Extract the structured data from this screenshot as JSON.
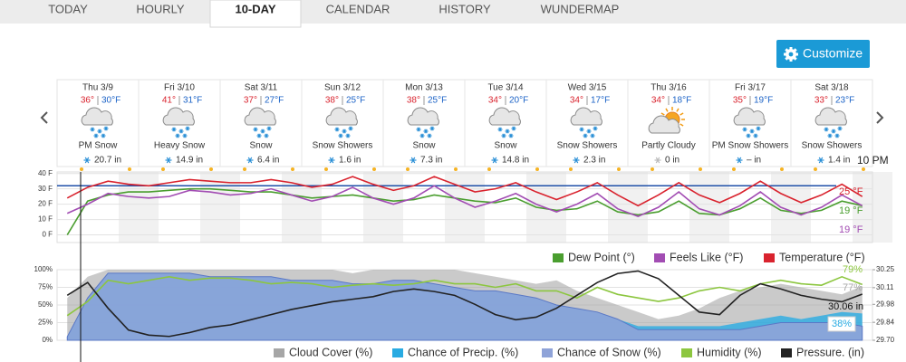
{
  "tabs": [
    "TODAY",
    "HOURLY",
    "10-DAY",
    "CALENDAR",
    "HISTORY",
    "WUNDERMAP"
  ],
  "active_tab": 2,
  "customize_button": "Customize",
  "days": [
    {
      "date": "Thu 3/9",
      "high": "36°",
      "low": "30°F",
      "condition": "PM Snow",
      "precip": "20.7 in"
    },
    {
      "date": "Fri 3/10",
      "high": "41°",
      "low": "31°F",
      "condition": "Heavy Snow",
      "precip": "14.9 in"
    },
    {
      "date": "Sat 3/11",
      "high": "37°",
      "low": "27°F",
      "condition": "Snow",
      "precip": "6.4 in"
    },
    {
      "date": "Sun 3/12",
      "high": "38°",
      "low": "25°F",
      "condition": "Snow Showers",
      "precip": "1.6 in"
    },
    {
      "date": "Mon 3/13",
      "high": "38°",
      "low": "25°F",
      "condition": "Snow",
      "precip": "7.3 in"
    },
    {
      "date": "Tue 3/14",
      "high": "34°",
      "low": "20°F",
      "condition": "Snow",
      "precip": "14.8 in"
    },
    {
      "date": "Wed 3/15",
      "high": "34°",
      "low": "17°F",
      "condition": "Snow Showers",
      "precip": "2.3 in"
    },
    {
      "date": "Thu 3/16",
      "high": "34°",
      "low": "18°F",
      "condition": "Partly Cloudy",
      "precip": "0 in"
    },
    {
      "date": "Fri 3/17",
      "high": "35°",
      "low": "19°F",
      "condition": "PM Snow Showers",
      "precip": "– in"
    },
    {
      "date": "Sat 3/18",
      "high": "33°",
      "low": "23°F",
      "condition": "Snow Showers",
      "precip": "1.4 in"
    }
  ],
  "time_label": "10 PM",
  "chart_data": [
    {
      "type": "line",
      "ylim": [
        -5,
        41
      ],
      "yticks": [
        {
          "value": 40,
          "label": "40 F"
        },
        {
          "value": 30,
          "label": "30 F"
        },
        {
          "value": 20,
          "label": "20 F"
        },
        {
          "value": 10,
          "label": "10 F"
        },
        {
          "value": 0,
          "label": "0 F"
        }
      ],
      "reference_line": 32,
      "series": [
        {
          "name": "Dew Point (°)",
          "color": "#4a9e2f",
          "end_label": "19 °F",
          "values": [
            0,
            22,
            26,
            28,
            28,
            29,
            30,
            30,
            29,
            28,
            28,
            26,
            24,
            25,
            26,
            24,
            22,
            23,
            26,
            24,
            22,
            21,
            24,
            18,
            16,
            17,
            22,
            15,
            13,
            15,
            22,
            14,
            13,
            17,
            24,
            16,
            14,
            16,
            22,
            19
          ]
        },
        {
          "name": "Feels Like (°F)",
          "color": "#a24db3",
          "end_label": "19 °F",
          "values": [
            14,
            20,
            27,
            25,
            24,
            25,
            29,
            28,
            26,
            27,
            30,
            26,
            22,
            25,
            31,
            24,
            20,
            24,
            32,
            24,
            18,
            22,
            27,
            20,
            15,
            20,
            27,
            17,
            12,
            18,
            28,
            17,
            13,
            19,
            28,
            18,
            13,
            18,
            26,
            19
          ]
        },
        {
          "name": "Temperature (°F)",
          "color": "#d9232e",
          "end_label": "25 °F",
          "values": [
            24,
            31,
            35,
            33,
            32,
            34,
            36,
            35,
            34,
            34,
            36,
            34,
            31,
            33,
            38,
            33,
            29,
            32,
            38,
            33,
            28,
            30,
            34,
            28,
            23,
            28,
            34,
            26,
            19,
            26,
            34,
            26,
            21,
            27,
            35,
            27,
            21,
            26,
            33,
            25
          ]
        }
      ]
    },
    {
      "type": "area",
      "ylim": [
        0,
        100
      ],
      "yticks": [
        {
          "value": 100,
          "label": "100%"
        },
        {
          "value": 75,
          "label": "75%"
        },
        {
          "value": 50,
          "label": "50%"
        },
        {
          "value": 25,
          "label": "25%"
        },
        {
          "value": 0,
          "label": "0%"
        }
      ],
      "y2lim": [
        29.7,
        30.25
      ],
      "y2ticks": [
        30.25,
        30.11,
        29.98,
        29.84,
        {
          "value": 29.7,
          "label": "29.70"
        }
      ],
      "series": [
        {
          "name": "Cloud Cover (%)",
          "color": "#a6a6a6",
          "end_label": "77%",
          "values": [
            60,
            90,
            100,
            100,
            100,
            100,
            100,
            100,
            100,
            100,
            100,
            100,
            100,
            100,
            95,
            100,
            100,
            100,
            100,
            100,
            95,
            90,
            85,
            80,
            85,
            70,
            60,
            50,
            40,
            30,
            35,
            45,
            60,
            70,
            75,
            80,
            75,
            70,
            65,
            77
          ]
        },
        {
          "name": "Chance of Precip. (%)",
          "color": "#29abe2",
          "end_label": "38%",
          "values": [
            5,
            60,
            95,
            95,
            95,
            95,
            95,
            90,
            90,
            90,
            90,
            85,
            85,
            85,
            80,
            80,
            85,
            85,
            80,
            75,
            70,
            70,
            65,
            60,
            50,
            45,
            40,
            30,
            20,
            20,
            20,
            20,
            20,
            25,
            30,
            35,
            30,
            35,
            40,
            38
          ]
        },
        {
          "name": "Chance of Snow (%)",
          "color": "#8fa3d8",
          "values": [
            5,
            60,
            95,
            95,
            95,
            95,
            95,
            90,
            90,
            90,
            90,
            85,
            85,
            85,
            80,
            80,
            85,
            85,
            80,
            75,
            70,
            70,
            65,
            60,
            50,
            45,
            40,
            30,
            15,
            15,
            15,
            15,
            15,
            15,
            20,
            25,
            25,
            25,
            25,
            20
          ]
        },
        {
          "name": "Humidity (%)",
          "color": "#8cc63f",
          "end_label": "79%",
          "values": [
            35,
            55,
            85,
            80,
            85,
            90,
            85,
            88,
            88,
            85,
            80,
            82,
            80,
            75,
            78,
            80,
            78,
            80,
            85,
            80,
            80,
            75,
            80,
            70,
            70,
            60,
            75,
            65,
            60,
            55,
            60,
            70,
            75,
            70,
            80,
            85,
            80,
            78,
            90,
            79
          ]
        },
        {
          "name": "Pressure. (in)",
          "color": "#222222",
          "axis": "y2",
          "end_label": "30.06 in",
          "values": [
            30.05,
            30.15,
            29.95,
            29.78,
            29.74,
            29.73,
            29.76,
            29.8,
            29.82,
            29.86,
            29.9,
            29.94,
            29.97,
            30,
            30.02,
            30.04,
            30.08,
            30.1,
            30.08,
            30.05,
            29.98,
            29.9,
            29.86,
            29.88,
            29.95,
            30.05,
            30.15,
            30.22,
            30.24,
            30.18,
            30.05,
            29.92,
            29.9,
            30.05,
            30.14,
            30.1,
            30.05,
            30.02,
            30,
            30.06
          ]
        }
      ]
    }
  ]
}
